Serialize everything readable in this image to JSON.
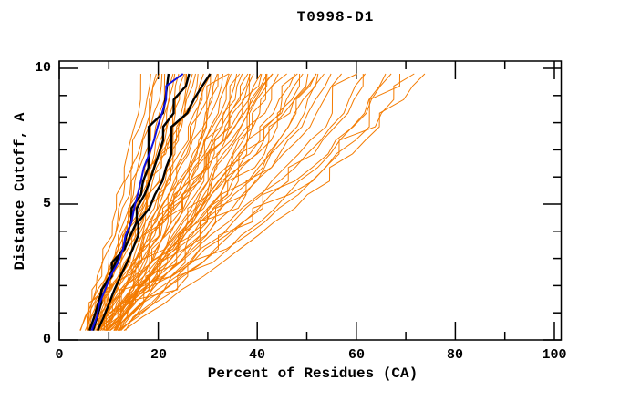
{
  "page": {
    "background": "#ffffff"
  },
  "chart_data": {
    "type": "line",
    "title": "T0998-D1",
    "xlabel": "Percent of Residues (CA)",
    "ylabel": "Distance Cutoff, A",
    "xlim": [
      0,
      101.5
    ],
    "ylim": [
      0,
      10.3
    ],
    "grid": false,
    "legend": "none",
    "axis_color": "#000000",
    "x_major_ticks": [
      0,
      20,
      40,
      60,
      80,
      100
    ],
    "x_minor_ticks": [
      10,
      30,
      50,
      70,
      90
    ],
    "y_major_ticks": [
      0,
      5,
      10
    ],
    "y_minor_ticks": [
      1,
      2,
      3,
      4,
      6,
      7,
      8,
      9
    ],
    "series_groups": [
      {
        "name": "predictions",
        "color": "#f47b00",
        "line_width": 1,
        "anchor_cutoffs": [
          0.35,
          2,
          4,
          6,
          8,
          9.8
        ],
        "curves": [
          [
            4.5,
            7.5,
            10.5,
            13,
            15.5,
            17
          ],
          [
            4.8,
            8,
            11,
            14,
            16.5,
            18.5
          ],
          [
            5,
            8.5,
            12,
            15,
            17.5,
            19.5
          ],
          [
            5.2,
            9,
            12.5,
            15.5,
            18,
            20
          ],
          [
            5.5,
            9.5,
            13,
            16,
            19,
            21
          ],
          [
            5.5,
            9,
            13.5,
            17,
            20,
            22
          ],
          [
            6,
            10,
            14,
            17.5,
            21,
            23
          ],
          [
            6,
            9.5,
            14.5,
            18.5,
            22,
            24
          ],
          [
            6.5,
            10.5,
            15,
            19,
            23,
            25
          ],
          [
            6.5,
            11,
            15.5,
            20,
            24,
            26
          ],
          [
            7,
            11.5,
            16,
            20.5,
            24.5,
            27
          ],
          [
            7,
            10.5,
            16.5,
            21,
            25.5,
            28
          ],
          [
            7.5,
            12,
            17,
            22,
            26,
            29
          ],
          [
            7.5,
            12.5,
            17.5,
            22.5,
            27,
            30
          ],
          [
            8,
            13,
            18,
            23,
            28,
            31
          ],
          [
            8,
            12.5,
            18.5,
            24,
            29,
            32
          ],
          [
            8.5,
            13.5,
            19,
            24.5,
            30,
            33
          ],
          [
            8.5,
            14,
            19.5,
            25,
            30.5,
            34
          ],
          [
            9,
            14.5,
            20,
            26,
            31.5,
            35
          ],
          [
            9,
            13.5,
            20.5,
            26.5,
            32,
            36
          ],
          [
            9.5,
            15,
            21,
            27,
            33,
            37
          ],
          [
            9.5,
            15.5,
            21.5,
            28,
            34,
            38
          ],
          [
            10,
            16,
            22,
            28.5,
            34.5,
            39
          ],
          [
            10,
            15.5,
            22.5,
            29,
            35.5,
            40
          ],
          [
            10.5,
            16.5,
            23,
            30,
            36,
            41
          ],
          [
            10.5,
            17,
            24,
            30.5,
            37,
            42
          ],
          [
            11,
            17.5,
            24.5,
            31,
            38,
            43
          ],
          [
            11,
            16.5,
            25,
            32,
            39,
            44
          ],
          [
            11.5,
            18,
            25.5,
            33,
            40,
            45
          ],
          [
            6,
            10,
            15,
            19.5,
            23.5,
            25.5
          ],
          [
            6.5,
            11.5,
            16.5,
            21.5,
            25,
            27.5
          ],
          [
            7,
            12.5,
            18,
            23.5,
            27.5,
            30.5
          ],
          [
            7.5,
            13.5,
            19.5,
            25.5,
            29.5,
            32.5
          ],
          [
            8,
            14.5,
            21,
            27,
            31.5,
            34.5
          ],
          [
            8.5,
            15.5,
            22,
            28.5,
            33.5,
            36.5
          ],
          [
            9,
            16.5,
            23.5,
            30,
            35,
            38.5
          ],
          [
            9.5,
            17.5,
            25,
            31.5,
            37,
            40.5
          ],
          [
            10,
            18.5,
            26,
            33,
            38.5,
            42.5
          ],
          [
            5.8,
            9.8,
            14.2,
            18.2,
            21.5,
            23.5
          ],
          [
            10.5,
            17,
            25,
            33.5,
            41,
            46
          ],
          [
            11,
            18,
            26.5,
            35,
            42.5,
            47.5
          ],
          [
            11.5,
            19,
            27.5,
            36,
            44,
            49
          ],
          [
            12,
            19.5,
            28.5,
            37.5,
            45.5,
            50.5
          ],
          [
            12,
            20,
            29.5,
            38.5,
            46.5,
            52
          ],
          [
            12.5,
            21,
            30.5,
            40,
            48,
            53.5
          ],
          [
            8.5,
            16,
            26,
            35,
            43,
            48
          ],
          [
            9,
            17,
            27.5,
            37,
            45,
            50
          ],
          [
            9.5,
            18,
            29,
            39,
            47,
            52.5
          ],
          [
            13,
            21.5,
            31.5,
            41,
            49.5,
            55
          ],
          [
            10,
            19,
            30,
            41,
            51,
            57
          ],
          [
            11,
            21,
            33,
            44,
            54,
            60
          ],
          [
            12,
            23,
            36,
            47,
            57,
            63
          ],
          [
            8,
            18,
            32,
            45,
            56,
            62
          ],
          [
            13,
            25,
            38,
            50,
            60,
            66
          ],
          [
            9,
            20,
            35,
            49,
            60,
            67
          ],
          [
            12,
            24,
            39,
            52,
            63,
            70
          ],
          [
            10,
            22,
            37,
            52,
            64,
            72
          ],
          [
            13,
            26,
            41,
            55,
            66,
            74
          ],
          [
            7,
            14,
            24,
            34,
            44,
            52
          ],
          [
            6,
            12,
            20,
            28,
            36,
            43
          ]
        ]
      },
      {
        "name": "reference-models",
        "color": "#000000",
        "line_width": 2.4,
        "anchor_cutoffs": [
          0.35,
          1,
          2,
          3,
          4,
          5,
          6,
          7,
          8,
          9,
          9.8
        ],
        "curves": [
          [
            6.2,
            7.2,
            9.2,
            11.7,
            14.2,
            15.8,
            17.2,
            19.2,
            20.8,
            21.5,
            22.2
          ],
          [
            7,
            8,
            10,
            12.5,
            15,
            16.8,
            18.5,
            20.5,
            22.5,
            24.5,
            26.3
          ],
          [
            8,
            9,
            11.5,
            14,
            16.5,
            18.5,
            21,
            23,
            25,
            27.5,
            30.5
          ]
        ]
      },
      {
        "name": "highlighted-model",
        "color": "#1010e0",
        "line_width": 2,
        "anchor_cutoffs": [
          0.35,
          1,
          2,
          3,
          4,
          5,
          6,
          7,
          8,
          9,
          9.8
        ],
        "curves": [
          [
            6.6,
            7.6,
            9.6,
            12.2,
            13.8,
            15.4,
            16.4,
            18.6,
            19.9,
            22,
            24.9
          ]
        ]
      }
    ]
  }
}
